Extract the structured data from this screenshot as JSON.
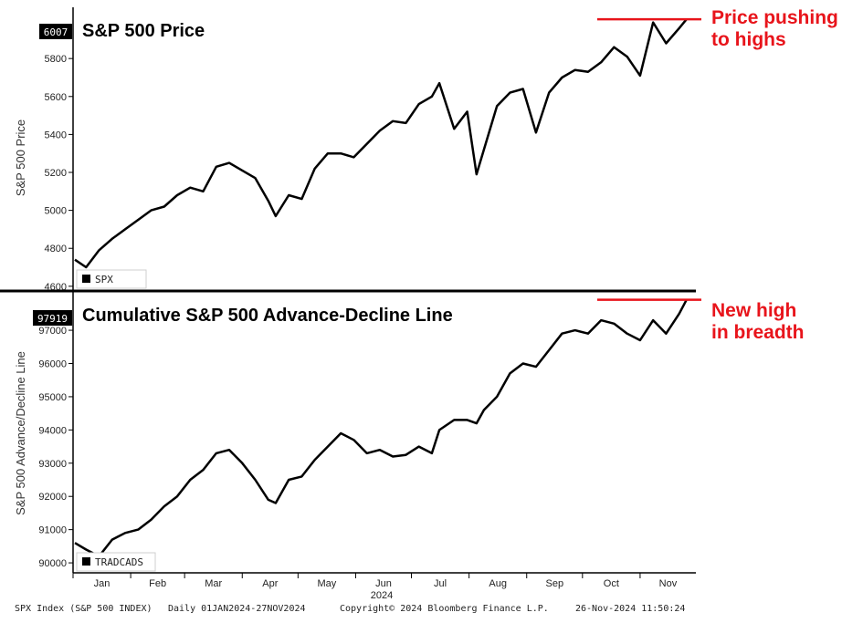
{
  "footer": {
    "index": "SPX Index (S&P 500 INDEX)",
    "range": "Daily 01JAN2024-27NOV2024",
    "copyright": "Copyright© 2024 Bloomberg Finance L.P.",
    "timestamp": "26-Nov-2024 11:50:24"
  },
  "annotations": {
    "price_note": [
      "Price pushing",
      "to highs"
    ],
    "breadth_note": [
      "New high",
      "in breadth"
    ],
    "color": "#e8141b"
  },
  "chart_data": [
    {
      "type": "line",
      "title": "S&P 500 Price",
      "ylabel": "S&P 500 Price",
      "legend": "SPX",
      "last_value_label": "6007",
      "ylim": [
        4580,
        6070
      ],
      "yticks": [
        4600,
        4800,
        5000,
        5200,
        5400,
        5600,
        5800
      ],
      "grid": false,
      "series_color": "#000000",
      "x": [
        "2024-01-02",
        "2024-01-08",
        "2024-01-15",
        "2024-01-22",
        "2024-01-29",
        "2024-02-05",
        "2024-02-12",
        "2024-02-19",
        "2024-02-26",
        "2024-03-04",
        "2024-03-11",
        "2024-03-18",
        "2024-03-25",
        "2024-04-01",
        "2024-04-08",
        "2024-04-15",
        "2024-04-19",
        "2024-04-26",
        "2024-05-03",
        "2024-05-10",
        "2024-05-17",
        "2024-05-24",
        "2024-05-31",
        "2024-06-07",
        "2024-06-14",
        "2024-06-21",
        "2024-06-28",
        "2024-07-05",
        "2024-07-12",
        "2024-07-16",
        "2024-07-24",
        "2024-07-31",
        "2024-08-05",
        "2024-08-09",
        "2024-08-16",
        "2024-08-23",
        "2024-08-30",
        "2024-09-06",
        "2024-09-13",
        "2024-09-20",
        "2024-09-27",
        "2024-10-04",
        "2024-10-11",
        "2024-10-18",
        "2024-10-25",
        "2024-11-01",
        "2024-11-08",
        "2024-11-15",
        "2024-11-22",
        "2024-11-26"
      ],
      "values": [
        4740,
        4700,
        4790,
        4850,
        4900,
        4950,
        5000,
        5020,
        5080,
        5120,
        5100,
        5230,
        5250,
        5210,
        5170,
        5050,
        4970,
        5080,
        5060,
        5220,
        5300,
        5300,
        5280,
        5350,
        5420,
        5470,
        5460,
        5560,
        5600,
        5670,
        5430,
        5520,
        5190,
        5320,
        5550,
        5620,
        5640,
        5410,
        5620,
        5700,
        5740,
        5730,
        5780,
        5860,
        5810,
        5710,
        5990,
        5880,
        5960,
        6007
      ]
    },
    {
      "type": "line",
      "title": "Cumulative S&P 500 Advance-Decline Line",
      "ylabel": "S&P 500 Advance/Decline Line",
      "legend": "TRADCADS",
      "last_value_label": "97919",
      "ylim": [
        89700,
        98100
      ],
      "yticks": [
        90000,
        91000,
        92000,
        93000,
        94000,
        95000,
        96000,
        97000
      ],
      "grid": false,
      "series_color": "#000000",
      "x": [
        "2024-01-02",
        "2024-01-08",
        "2024-01-15",
        "2024-01-22",
        "2024-01-29",
        "2024-02-05",
        "2024-02-12",
        "2024-02-19",
        "2024-02-26",
        "2024-03-04",
        "2024-03-11",
        "2024-03-18",
        "2024-03-25",
        "2024-04-01",
        "2024-04-08",
        "2024-04-15",
        "2024-04-19",
        "2024-04-26",
        "2024-05-03",
        "2024-05-10",
        "2024-05-17",
        "2024-05-24",
        "2024-05-31",
        "2024-06-07",
        "2024-06-14",
        "2024-06-21",
        "2024-06-28",
        "2024-07-05",
        "2024-07-12",
        "2024-07-16",
        "2024-07-24",
        "2024-07-31",
        "2024-08-05",
        "2024-08-09",
        "2024-08-16",
        "2024-08-23",
        "2024-08-30",
        "2024-09-06",
        "2024-09-13",
        "2024-09-20",
        "2024-09-27",
        "2024-10-04",
        "2024-10-11",
        "2024-10-18",
        "2024-10-25",
        "2024-11-01",
        "2024-11-08",
        "2024-11-15",
        "2024-11-22",
        "2024-11-26"
      ],
      "values": [
        90600,
        90400,
        90200,
        90700,
        90900,
        91000,
        91300,
        91700,
        92000,
        92500,
        92800,
        93300,
        93400,
        93000,
        92500,
        91900,
        91800,
        92500,
        92600,
        93100,
        93500,
        93900,
        93700,
        93300,
        93400,
        93200,
        93250,
        93500,
        93300,
        94000,
        94300,
        94300,
        94200,
        94600,
        95000,
        95700,
        96000,
        95900,
        96400,
        96900,
        97000,
        96900,
        97300,
        97200,
        96900,
        96700,
        97300,
        96900,
        97500,
        97919
      ]
    }
  ],
  "x_axis": {
    "months": [
      "Jan",
      "Feb",
      "Mar",
      "Apr",
      "May",
      "Jun",
      "Jul",
      "Aug",
      "Sep",
      "Oct",
      "Nov"
    ],
    "year": "2024"
  }
}
